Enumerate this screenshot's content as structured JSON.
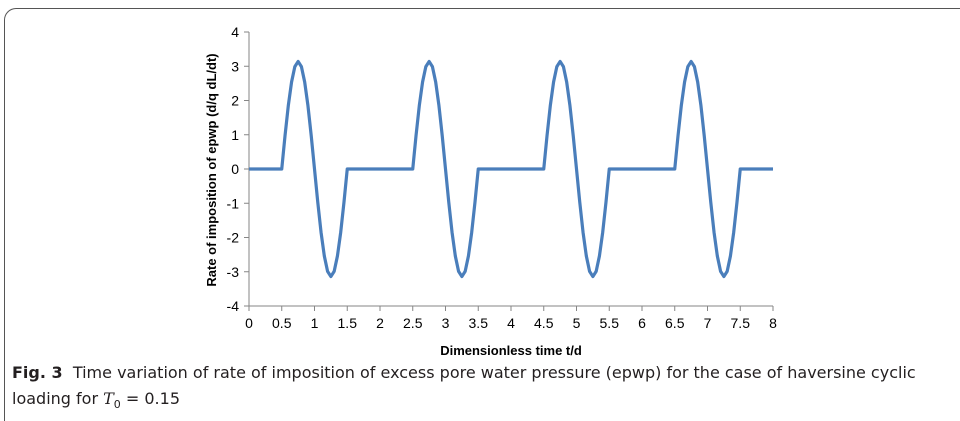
{
  "chart_data": {
    "type": "line",
    "xlabel": "Dimensionless time  t/d",
    "ylabel": "Rate of imposition of epwp (d/q dL/dt)",
    "xlim": [
      0,
      8
    ],
    "ylim": [
      -4,
      4
    ],
    "xticks": [
      "0",
      "0.5",
      "1",
      "1.5",
      "2",
      "2.5",
      "3",
      "3.5",
      "4",
      "4.5",
      "5",
      "5.5",
      "6",
      "6.5",
      "7",
      "7.5",
      "8"
    ],
    "yticks": [
      "4",
      "3",
      "2",
      "1",
      "0",
      "-1",
      "-2",
      "-3",
      "-4"
    ],
    "grid": false,
    "line_color": "#4a7ebb",
    "series": [
      {
        "period": 2,
        "active_interval": [
          0.5,
          1.5
        ],
        "amplitude": 3.14,
        "x": [
          0,
          0.5,
          0.55,
          0.6,
          0.65,
          0.7,
          0.75,
          0.8,
          0.85,
          0.9,
          0.95,
          1.0,
          1.05,
          1.1,
          1.15,
          1.2,
          1.25,
          1.3,
          1.35,
          1.4,
          1.45,
          1.5,
          2.5,
          2.55,
          2.6,
          2.65,
          2.7,
          2.75,
          2.8,
          2.85,
          2.9,
          2.95,
          3.0,
          3.05,
          3.1,
          3.15,
          3.2,
          3.25,
          3.3,
          3.35,
          3.4,
          3.45,
          3.5,
          4.5,
          4.55,
          4.6,
          4.65,
          4.7,
          4.75,
          4.8,
          4.85,
          4.9,
          4.95,
          5.0,
          5.05,
          5.1,
          5.15,
          5.2,
          5.25,
          5.3,
          5.35,
          5.4,
          5.45,
          5.5,
          6.5,
          6.55,
          6.6,
          6.65,
          6.7,
          6.75,
          6.8,
          6.85,
          6.9,
          6.95,
          7.0,
          7.05,
          7.1,
          7.15,
          7.2,
          7.25,
          7.3,
          7.35,
          7.4,
          7.45,
          7.5,
          8
        ],
        "y": [
          0,
          0,
          0.97,
          1.85,
          2.54,
          2.99,
          3.14,
          2.99,
          2.54,
          1.85,
          0.97,
          0,
          -0.97,
          -1.85,
          -2.54,
          -2.99,
          -3.14,
          -2.99,
          -2.54,
          -1.85,
          -0.97,
          0,
          0,
          0.97,
          1.85,
          2.54,
          2.99,
          3.14,
          2.99,
          2.54,
          1.85,
          0.97,
          0,
          -0.97,
          -1.85,
          -2.54,
          -2.99,
          -3.14,
          -2.99,
          -2.54,
          -1.85,
          -0.97,
          0,
          0,
          0.97,
          1.85,
          2.54,
          2.99,
          3.14,
          2.99,
          2.54,
          1.85,
          0.97,
          0,
          -0.97,
          -1.85,
          -2.54,
          -2.99,
          -3.14,
          -2.99,
          -2.54,
          -1.85,
          -0.97,
          0,
          0,
          0.97,
          1.85,
          2.54,
          2.99,
          3.14,
          2.99,
          2.54,
          1.85,
          0.97,
          0,
          -0.97,
          -1.85,
          -2.54,
          -2.99,
          -3.14,
          -2.99,
          -2.54,
          -1.85,
          -0.97,
          0,
          0
        ]
      }
    ]
  },
  "caption": {
    "label": "Fig. 3",
    "text": "Time variation of rate of imposition of excess pore water pressure (epwp) for the case of haversine cyclic loading for",
    "symbol": "T",
    "subscript": "0",
    "equals": " = 0.15"
  }
}
